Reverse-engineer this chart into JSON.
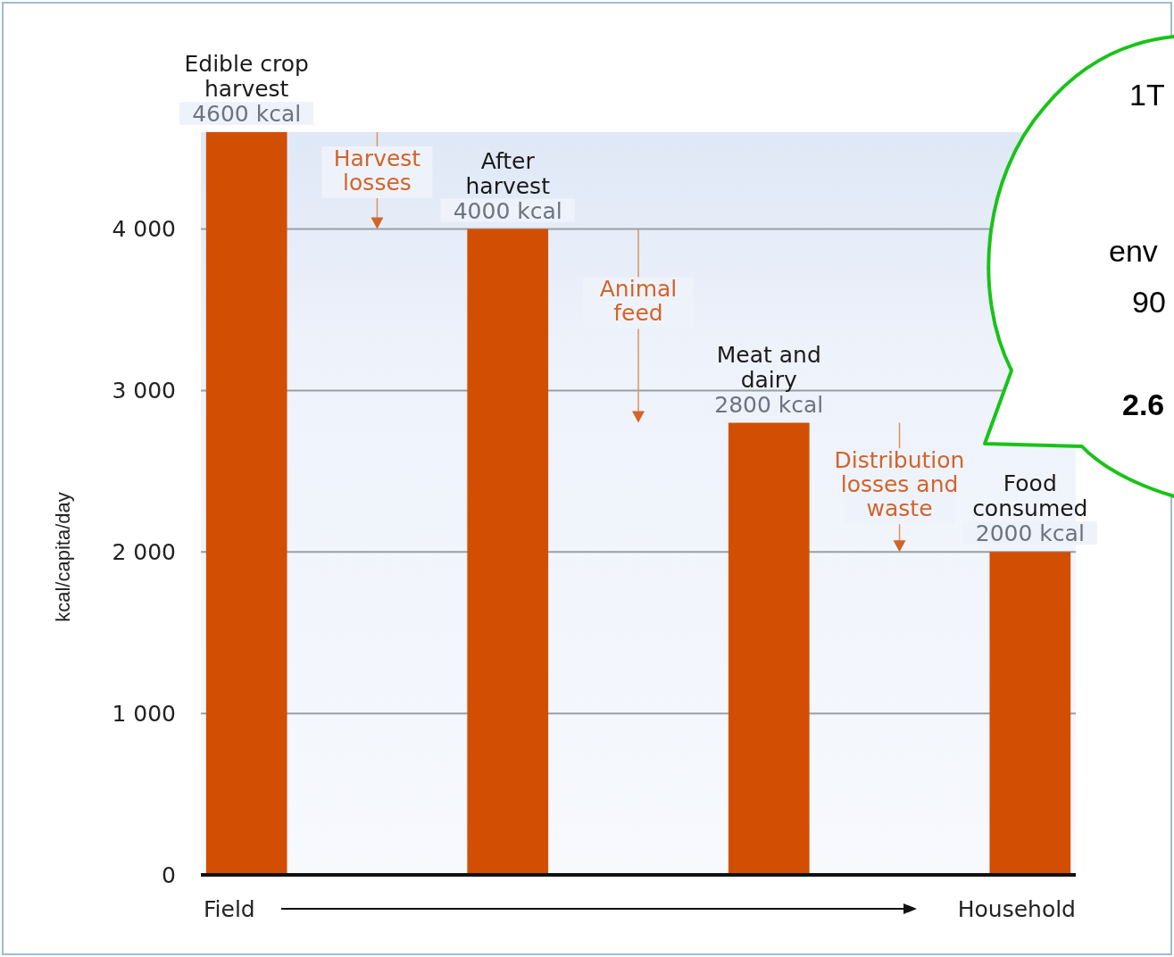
{
  "chart_data": {
    "type": "bar",
    "ylabel": "kcal/capita/day",
    "categories": [
      "Edible crop harvest",
      "After harvest",
      "Meat and dairy",
      "Food consumed"
    ],
    "values": [
      4600,
      4000,
      2800,
      2000
    ],
    "color": "#d24e02",
    "value_labels": [
      "4600 kcal",
      "4000 kcal",
      "2800 kcal",
      "2000 kcal"
    ],
    "ylim": [
      0,
      4600
    ],
    "yticks": [
      0,
      {
        "value": 1000,
        "label": "1 000"
      },
      {
        "value": 2000,
        "label": "2 000"
      },
      {
        "value": 3000,
        "label": "3 000"
      },
      {
        "value": 4000,
        "label": "4 000"
      }
    ],
    "grid": "y",
    "annotations": [
      "Harvest losses",
      "Animal feed",
      "Distribution losses and waste",
      "Field",
      "Household",
      "1T",
      "env",
      "90",
      "2.6"
    ]
  }
}
